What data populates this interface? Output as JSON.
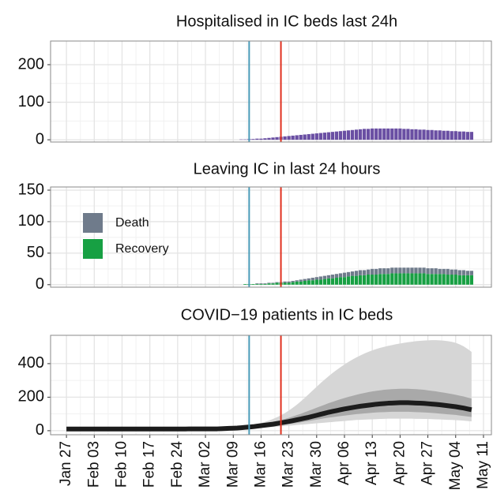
{
  "chart_data": [
    {
      "type": "bar",
      "title": "Hospitalised in IC beds last 24h",
      "color": "#6a4fa3",
      "ylim": [
        -6,
        263
      ],
      "yticks": [
        0,
        100,
        200
      ],
      "vlines": [
        {
          "x": 46,
          "color": "#4a9cb8"
        },
        {
          "x": 54,
          "color": "#e0301e"
        }
      ],
      "values": [
        null,
        null,
        null,
        null,
        null,
        null,
        null,
        null,
        null,
        null,
        null,
        null,
        null,
        null,
        null,
        null,
        null,
        null,
        null,
        null,
        null,
        null,
        null,
        null,
        null,
        null,
        null,
        null,
        null,
        null,
        null,
        null,
        null,
        null,
        null,
        null,
        null,
        null,
        null,
        null,
        null,
        null,
        null,
        null,
        1,
        1,
        2,
        2,
        3,
        3,
        4,
        5,
        6,
        7,
        8,
        9,
        10,
        11,
        12,
        13,
        14,
        15,
        16,
        17,
        18,
        19,
        20,
        21,
        22,
        23,
        24,
        25,
        26,
        27,
        28,
        29,
        29,
        30,
        30,
        30,
        30,
        30,
        30,
        30,
        30,
        29,
        29,
        28,
        28,
        27,
        27,
        26,
        26,
        25,
        25,
        24,
        24,
        23,
        23,
        22,
        22,
        21,
        21,
        null,
        null,
        null
      ]
    },
    {
      "type": "stacked_bar",
      "title": "Leaving IC in last 24 hours",
      "ylim": [
        -4,
        155
      ],
      "yticks": [
        0,
        50,
        100,
        150
      ],
      "vlines": [
        {
          "x": 46,
          "color": "#4a9cb8"
        },
        {
          "x": 54,
          "color": "#e0301e"
        }
      ],
      "series": [
        {
          "name": "Death",
          "color": "#6f7b8b",
          "values": [
            null,
            null,
            null,
            null,
            null,
            null,
            null,
            null,
            null,
            null,
            null,
            null,
            null,
            null,
            null,
            null,
            null,
            null,
            null,
            null,
            null,
            null,
            null,
            null,
            null,
            null,
            null,
            null,
            null,
            null,
            null,
            null,
            null,
            null,
            null,
            null,
            null,
            null,
            null,
            null,
            null,
            null,
            null,
            null,
            0,
            0,
            0,
            0,
            1,
            1,
            1,
            1,
            1,
            1,
            1,
            2,
            2,
            2,
            2,
            3,
            3,
            3,
            4,
            4,
            5,
            5,
            5,
            6,
            6,
            6,
            7,
            7,
            7,
            8,
            8,
            8,
            8,
            9,
            9,
            9,
            9,
            9,
            9,
            9,
            9,
            9,
            9,
            9,
            9,
            9,
            9,
            9,
            9,
            9,
            8,
            8,
            9,
            8,
            8,
            8,
            8,
            7,
            7,
            null,
            null,
            null
          ]
        },
        {
          "name": "Recovery",
          "color": "#17a043",
          "values": [
            null,
            null,
            null,
            null,
            null,
            null,
            null,
            null,
            null,
            null,
            null,
            null,
            null,
            null,
            null,
            null,
            null,
            null,
            null,
            null,
            null,
            null,
            null,
            null,
            null,
            null,
            null,
            null,
            null,
            null,
            null,
            null,
            null,
            null,
            null,
            null,
            null,
            null,
            null,
            null,
            null,
            null,
            null,
            null,
            0,
            1,
            1,
            1,
            1,
            1,
            1,
            2,
            2,
            3,
            3,
            3,
            3,
            4,
            5,
            5,
            6,
            7,
            7,
            8,
            8,
            9,
            10,
            10,
            11,
            12,
            12,
            13,
            14,
            14,
            15,
            15,
            16,
            16,
            16,
            17,
            17,
            17,
            18,
            18,
            18,
            18,
            18,
            18,
            18,
            18,
            18,
            17,
            17,
            17,
            17,
            17,
            16,
            16,
            16,
            15,
            15,
            15,
            15,
            null,
            null,
            null
          ]
        }
      ]
    },
    {
      "type": "line",
      "title": "COVID−19 patients in IC beds",
      "ylim": [
        -24,
        569
      ],
      "yticks": [
        0,
        200,
        400
      ],
      "vlines": [
        {
          "x": 46,
          "color": "#4a9cb8"
        },
        {
          "x": 54,
          "color": "#e0301e"
        }
      ],
      "categories": [
        "Jan 27",
        null,
        null,
        null,
        null,
        null,
        null,
        "Feb 03",
        null,
        null,
        null,
        null,
        null,
        null,
        "Feb 10",
        null,
        null,
        null,
        null,
        null,
        null,
        "Feb 17",
        null,
        null,
        null,
        null,
        null,
        null,
        "Feb 24",
        null,
        null,
        null,
        null,
        null,
        null,
        "Mar 02",
        null,
        null,
        null,
        null,
        null,
        null,
        "Mar 09",
        null,
        null,
        null,
        null,
        null,
        null,
        "Mar 16",
        null,
        null,
        null,
        null,
        null,
        null,
        "Mar 23",
        null,
        null,
        null,
        null,
        null,
        null,
        "Mar 30",
        null,
        null,
        null,
        null,
        null,
        null,
        "Apr 06",
        null,
        null,
        null,
        null,
        null,
        null,
        "Apr 13",
        null,
        null,
        null,
        null,
        null,
        null,
        "Apr 20",
        null,
        null,
        null,
        null,
        null,
        null,
        "Apr 27",
        null,
        null,
        null,
        null,
        null,
        null,
        "May 04",
        null,
        null,
        null,
        null,
        null,
        null,
        "May 11"
      ],
      "bands": [
        {
          "color": "#d6d6d6",
          "lower": [
            null,
            null,
            null,
            null,
            null,
            null,
            null,
            null,
            null,
            null,
            null,
            null,
            null,
            null,
            null,
            null,
            null,
            null,
            null,
            null,
            null,
            null,
            null,
            null,
            null,
            null,
            null,
            null,
            null,
            null,
            null,
            null,
            null,
            null,
            null,
            null,
            null,
            null,
            null,
            null,
            10,
            10,
            11,
            11,
            12,
            13,
            14,
            15,
            16,
            18,
            19,
            21,
            22,
            24,
            26,
            28,
            30,
            32,
            34,
            36,
            38,
            40,
            42,
            44,
            46,
            48,
            50,
            52,
            54,
            56,
            58,
            60,
            62,
            64,
            65,
            66,
            67,
            68,
            69,
            70,
            71,
            72,
            72,
            72,
            72,
            72,
            72,
            72,
            71,
            71,
            70,
            70,
            69,
            68,
            67,
            66,
            65,
            64,
            63,
            62,
            60,
            58,
            56,
            null,
            null,
            null
          ],
          "upper": [
            null,
            null,
            null,
            null,
            null,
            null,
            null,
            null,
            null,
            null,
            null,
            null,
            null,
            null,
            null,
            null,
            null,
            null,
            null,
            null,
            null,
            null,
            null,
            null,
            null,
            null,
            null,
            null,
            null,
            null,
            null,
            null,
            null,
            null,
            null,
            null,
            null,
            null,
            null,
            null,
            15,
            17,
            19,
            21,
            24,
            27,
            31,
            35,
            40,
            46,
            53,
            61,
            70,
            80,
            92,
            105,
            120,
            137,
            155,
            175,
            196,
            218,
            240,
            262,
            284,
            305,
            325,
            344,
            362,
            379,
            395,
            410,
            424,
            437,
            449,
            460,
            470,
            479,
            487,
            494,
            500,
            506,
            511,
            516,
            520,
            524,
            528,
            531,
            534,
            536,
            538,
            539,
            540,
            540,
            539,
            537,
            534,
            530,
            524,
            515,
            503,
            488,
            470,
            null,
            null,
            null
          ]
        },
        {
          "color": "#9a9a9a",
          "lower": [
            null,
            null,
            null,
            null,
            null,
            null,
            null,
            null,
            null,
            null,
            null,
            null,
            null,
            null,
            null,
            null,
            null,
            null,
            null,
            null,
            null,
            null,
            null,
            null,
            null,
            null,
            null,
            null,
            null,
            null,
            null,
            null,
            null,
            null,
            null,
            null,
            null,
            null,
            null,
            null,
            11,
            12,
            12,
            13,
            14,
            15,
            17,
            18,
            20,
            22,
            24,
            26,
            28,
            31,
            34,
            37,
            40,
            43,
            46,
            50,
            54,
            58,
            62,
            66,
            70,
            74,
            78,
            81,
            84,
            87,
            90,
            93,
            96,
            99,
            101,
            103,
            105,
            107,
            109,
            110,
            111,
            112,
            113,
            113,
            113,
            113,
            113,
            112,
            111,
            110,
            109,
            108,
            106,
            104,
            102,
            100,
            98,
            96,
            94,
            91,
            88,
            85,
            82,
            null,
            null,
            null
          ],
          "upper": [
            null,
            null,
            null,
            null,
            null,
            null,
            null,
            null,
            null,
            null,
            null,
            null,
            null,
            null,
            null,
            null,
            null,
            null,
            null,
            null,
            null,
            null,
            null,
            null,
            null,
            null,
            null,
            null,
            null,
            null,
            null,
            null,
            null,
            null,
            null,
            null,
            null,
            null,
            null,
            null,
            13,
            14,
            15,
            17,
            19,
            22,
            25,
            28,
            32,
            36,
            41,
            46,
            51,
            57,
            63,
            70,
            77,
            85,
            93,
            101,
            110,
            119,
            128,
            137,
            146,
            155,
            164,
            172,
            180,
            188,
            195,
            202,
            208,
            214,
            220,
            225,
            230,
            234,
            238,
            241,
            244,
            246,
            248,
            249,
            250,
            250,
            250,
            249,
            248,
            246,
            244,
            241,
            238,
            235,
            231,
            227,
            223,
            219,
            214,
            209,
            204,
            198,
            192,
            null,
            null,
            null
          ]
        }
      ],
      "series": [
        {
          "color": "#1c1c1c",
          "values": [
            10,
            10,
            10,
            10,
            10,
            10,
            10,
            10,
            10,
            10,
            10,
            10,
            10,
            10,
            10,
            10,
            10,
            10,
            10,
            10,
            10,
            10,
            10,
            10,
            10,
            10,
            10,
            10,
            10,
            10,
            10,
            11,
            11,
            11,
            11,
            11,
            11,
            11,
            11,
            12,
            13,
            14,
            15,
            16,
            18,
            20,
            22,
            24,
            27,
            30,
            33,
            36,
            39,
            43,
            47,
            51,
            55,
            60,
            65,
            70,
            75,
            80,
            86,
            92,
            98,
            104,
            110,
            115,
            120,
            125,
            130,
            134,
            138,
            142,
            146,
            149,
            152,
            155,
            158,
            160,
            162,
            164,
            165,
            166,
            167,
            167,
            167,
            166,
            165,
            164,
            163,
            161,
            159,
            157,
            155,
            152,
            149,
            146,
            143,
            139,
            135,
            130,
            125,
            null,
            null,
            null
          ]
        }
      ]
    }
  ]
}
